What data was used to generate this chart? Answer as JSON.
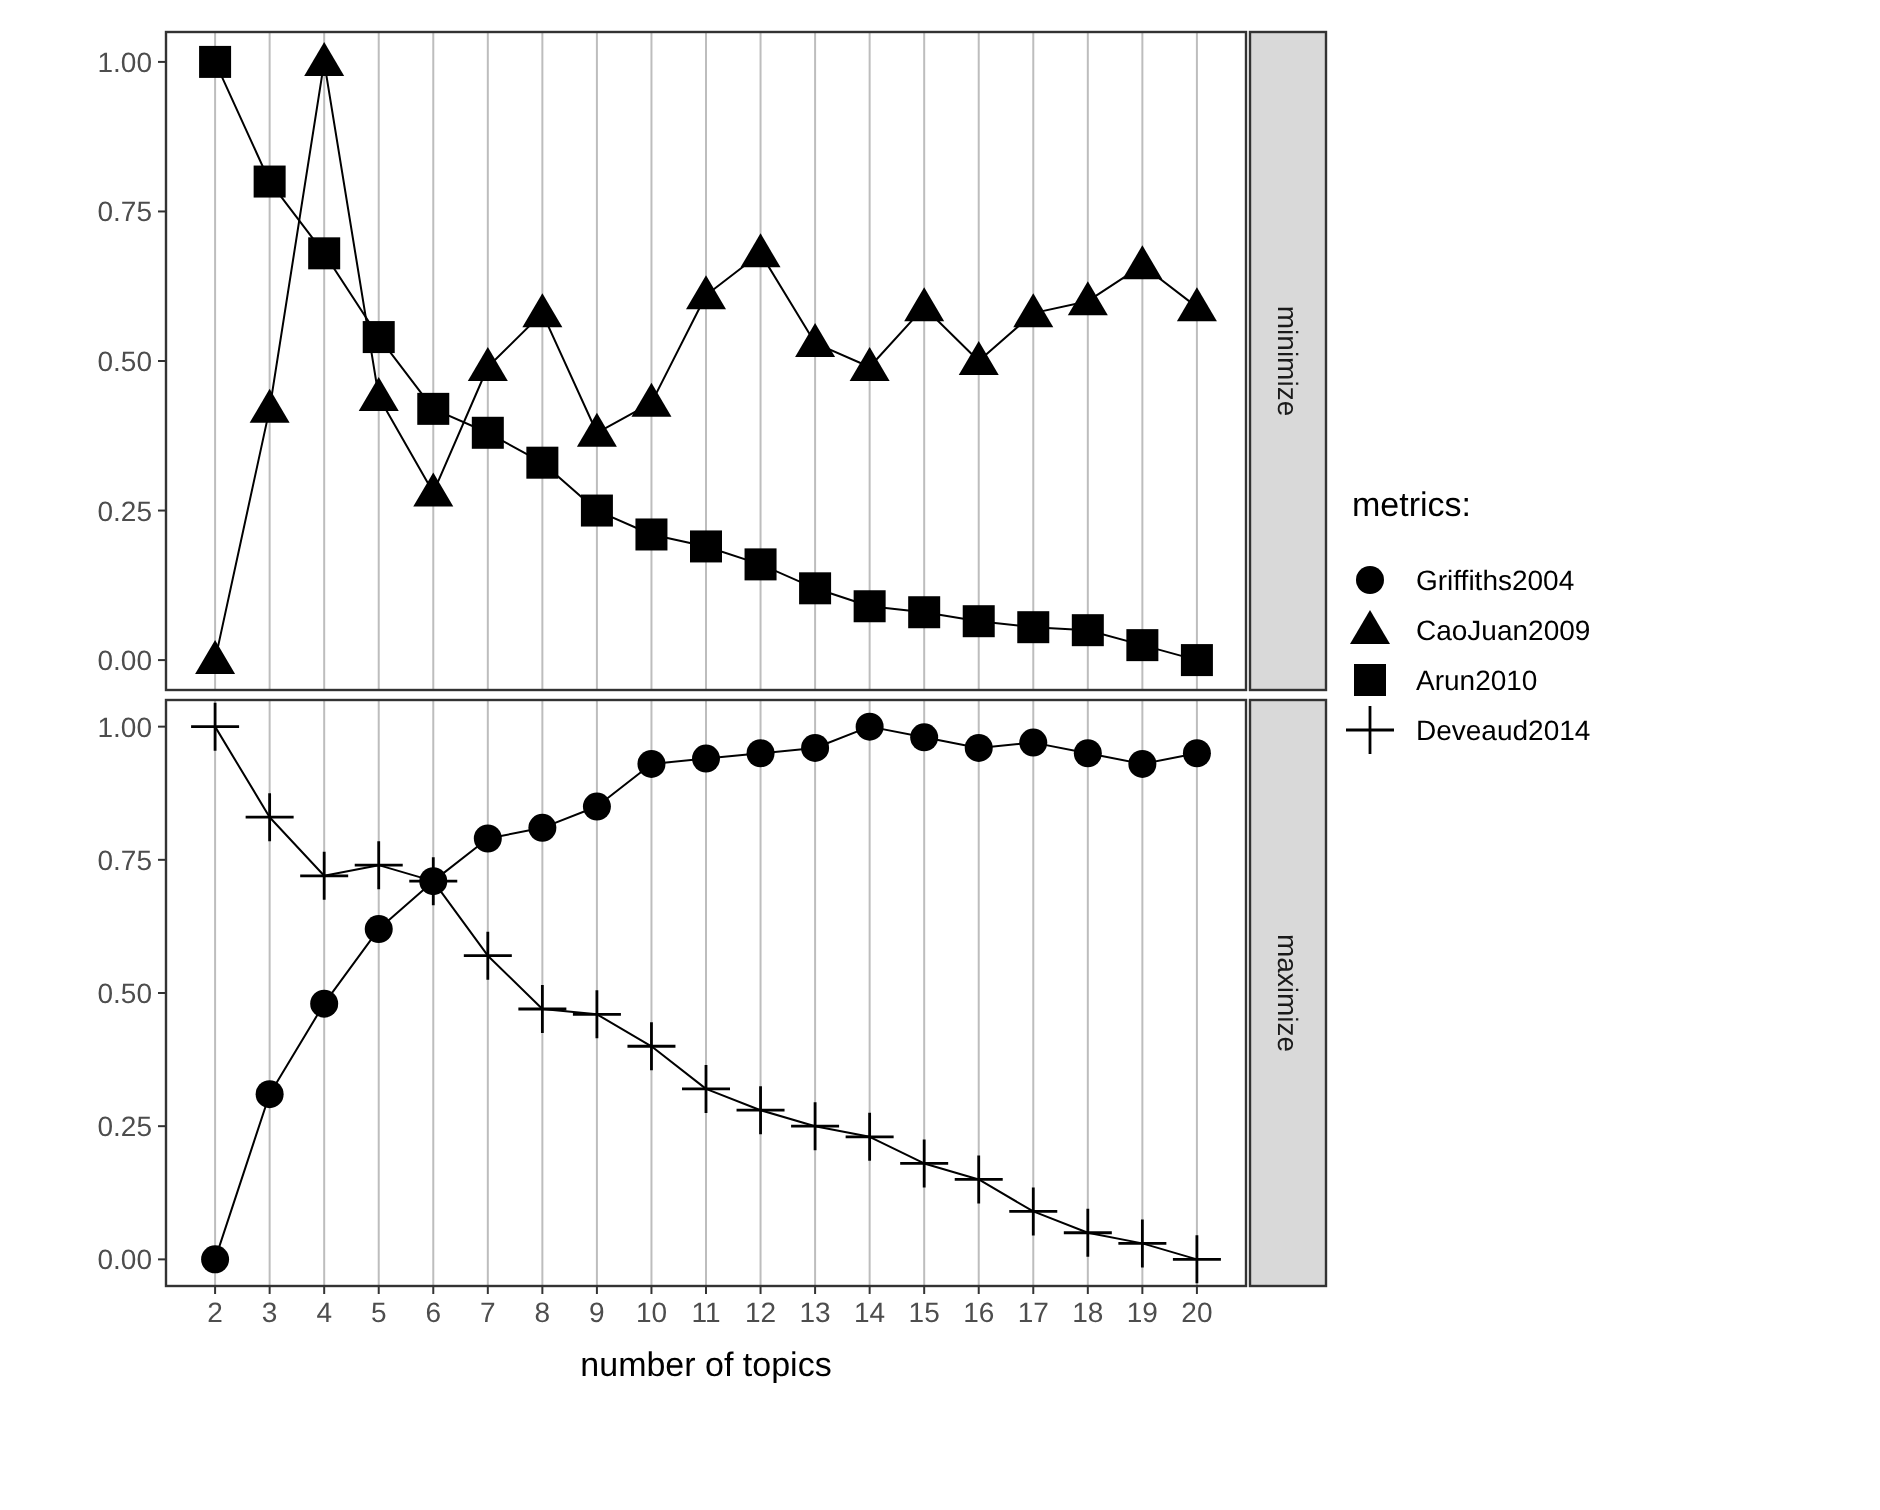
{
  "chart_data": [
    {
      "type": "line",
      "annotations": [
        "minimize"
      ],
      "legend_title": "metrics:",
      "legend": "right",
      "grid": "x",
      "tick_labels": "y",
      "x": [
        2,
        3,
        4,
        5,
        6,
        7,
        8,
        9,
        10,
        11,
        12,
        13,
        14,
        15,
        16,
        17,
        18,
        19,
        20
      ],
      "xlim": [
        1.1,
        20.9
      ],
      "xticks": [
        2,
        3,
        4,
        5,
        6,
        7,
        8,
        9,
        10,
        11,
        12,
        13,
        14,
        15,
        16,
        17,
        18,
        19,
        20
      ],
      "ylim": [
        -0.05,
        1.05
      ],
      "yticks": [
        {
          "value": 0,
          "label": "0.00"
        },
        {
          "value": 0.25,
          "label": "0.25"
        },
        {
          "value": 0.5,
          "label": "0.50"
        },
        {
          "value": 0.75,
          "label": "0.75"
        },
        {
          "value": 1,
          "label": "1.00"
        }
      ],
      "series": [
        {
          "name": "CaoJuan2009",
          "color": "#000000",
          "marker": "triangle",
          "values": [
            0,
            0.42,
            1,
            0.44,
            0.28,
            0.49,
            0.58,
            0.38,
            0.43,
            0.61,
            0.68,
            0.53,
            0.49,
            0.59,
            0.5,
            0.58,
            0.6,
            0.66,
            0.59
          ]
        },
        {
          "name": "Arun2010",
          "color": "#000000",
          "marker": "square",
          "values": [
            1,
            0.8,
            0.68,
            0.54,
            0.42,
            0.38,
            0.33,
            0.25,
            0.21,
            0.19,
            0.16,
            0.12,
            0.09,
            0.08,
            0.065,
            0.055,
            0.05,
            0.025,
            0
          ]
        }
      ]
    },
    {
      "type": "line",
      "annotations": [
        "maximize"
      ],
      "xlabel": "number of topics",
      "legend": "right",
      "grid": "x",
      "x": [
        2,
        3,
        4,
        5,
        6,
        7,
        8,
        9,
        10,
        11,
        12,
        13,
        14,
        15,
        16,
        17,
        18,
        19,
        20
      ],
      "xlim": [
        1.1,
        20.9
      ],
      "xticks": [
        2,
        3,
        4,
        5,
        6,
        7,
        8,
        9,
        10,
        11,
        12,
        13,
        14,
        15,
        16,
        17,
        18,
        19,
        20
      ],
      "ylim": [
        -0.05,
        1.05
      ],
      "yticks": [
        {
          "value": 0,
          "label": "0.00"
        },
        {
          "value": 0.25,
          "label": "0.25"
        },
        {
          "value": 0.5,
          "label": "0.50"
        },
        {
          "value": 0.75,
          "label": "0.75"
        },
        {
          "value": 1,
          "label": "1.00"
        }
      ],
      "series": [
        {
          "name": "Griffiths2004",
          "color": "#000000",
          "marker": "circle",
          "values": [
            0,
            0.31,
            0.48,
            0.62,
            0.71,
            0.79,
            0.81,
            0.85,
            0.93,
            0.94,
            0.95,
            0.96,
            1,
            0.98,
            0.96,
            0.97,
            0.95,
            0.93,
            0.95
          ]
        },
        {
          "name": "Deveaud2014",
          "color": "#000000",
          "marker": "cross",
          "values": [
            1,
            0.83,
            0.72,
            0.74,
            0.71,
            0.57,
            0.47,
            0.46,
            0.4,
            0.32,
            0.28,
            0.25,
            0.23,
            0.18,
            0.15,
            0.09,
            0.05,
            0.03,
            0
          ]
        }
      ]
    }
  ]
}
